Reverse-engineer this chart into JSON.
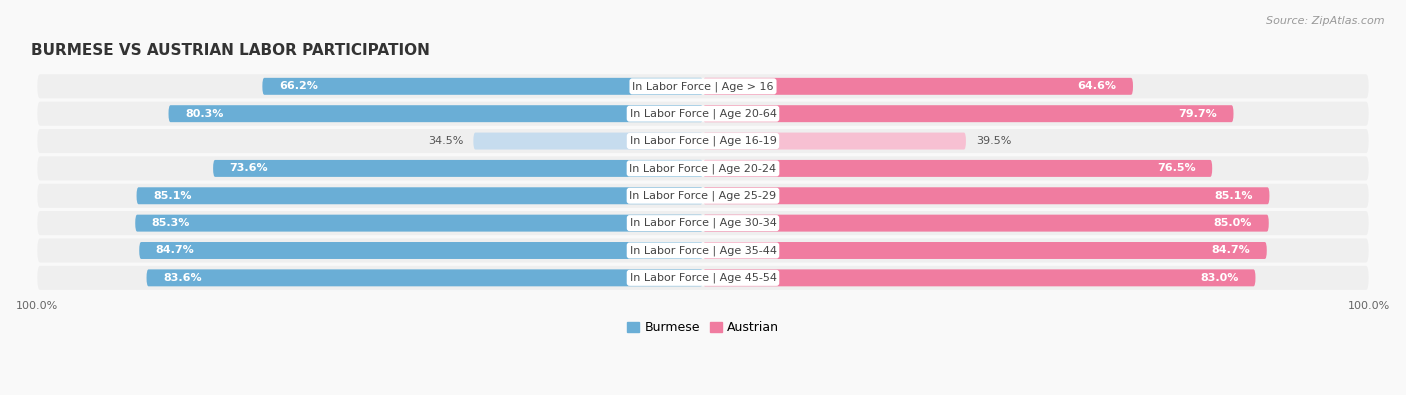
{
  "title": "BURMESE VS AUSTRIAN LABOR PARTICIPATION",
  "source": "Source: ZipAtlas.com",
  "categories": [
    "In Labor Force | Age > 16",
    "In Labor Force | Age 20-64",
    "In Labor Force | Age 16-19",
    "In Labor Force | Age 20-24",
    "In Labor Force | Age 25-29",
    "In Labor Force | Age 30-34",
    "In Labor Force | Age 35-44",
    "In Labor Force | Age 45-54"
  ],
  "burmese": [
    66.2,
    80.3,
    34.5,
    73.6,
    85.1,
    85.3,
    84.7,
    83.6
  ],
  "austrian": [
    64.6,
    79.7,
    39.5,
    76.5,
    85.1,
    85.0,
    84.7,
    83.0
  ],
  "burmese_color_strong": "#6aaed6",
  "burmese_color_light": "#c6dcee",
  "austrian_color_strong": "#f07ca0",
  "austrian_color_light": "#f7c0d2",
  "bg_row_color": "#efefef",
  "bg_figure_color": "#f9f9f9",
  "threshold_strong": 50.0,
  "legend_burmese": "Burmese",
  "legend_austrian": "Austrian",
  "title_fontsize": 11,
  "label_fontsize": 8,
  "cat_fontsize": 8,
  "val_fontsize": 8
}
